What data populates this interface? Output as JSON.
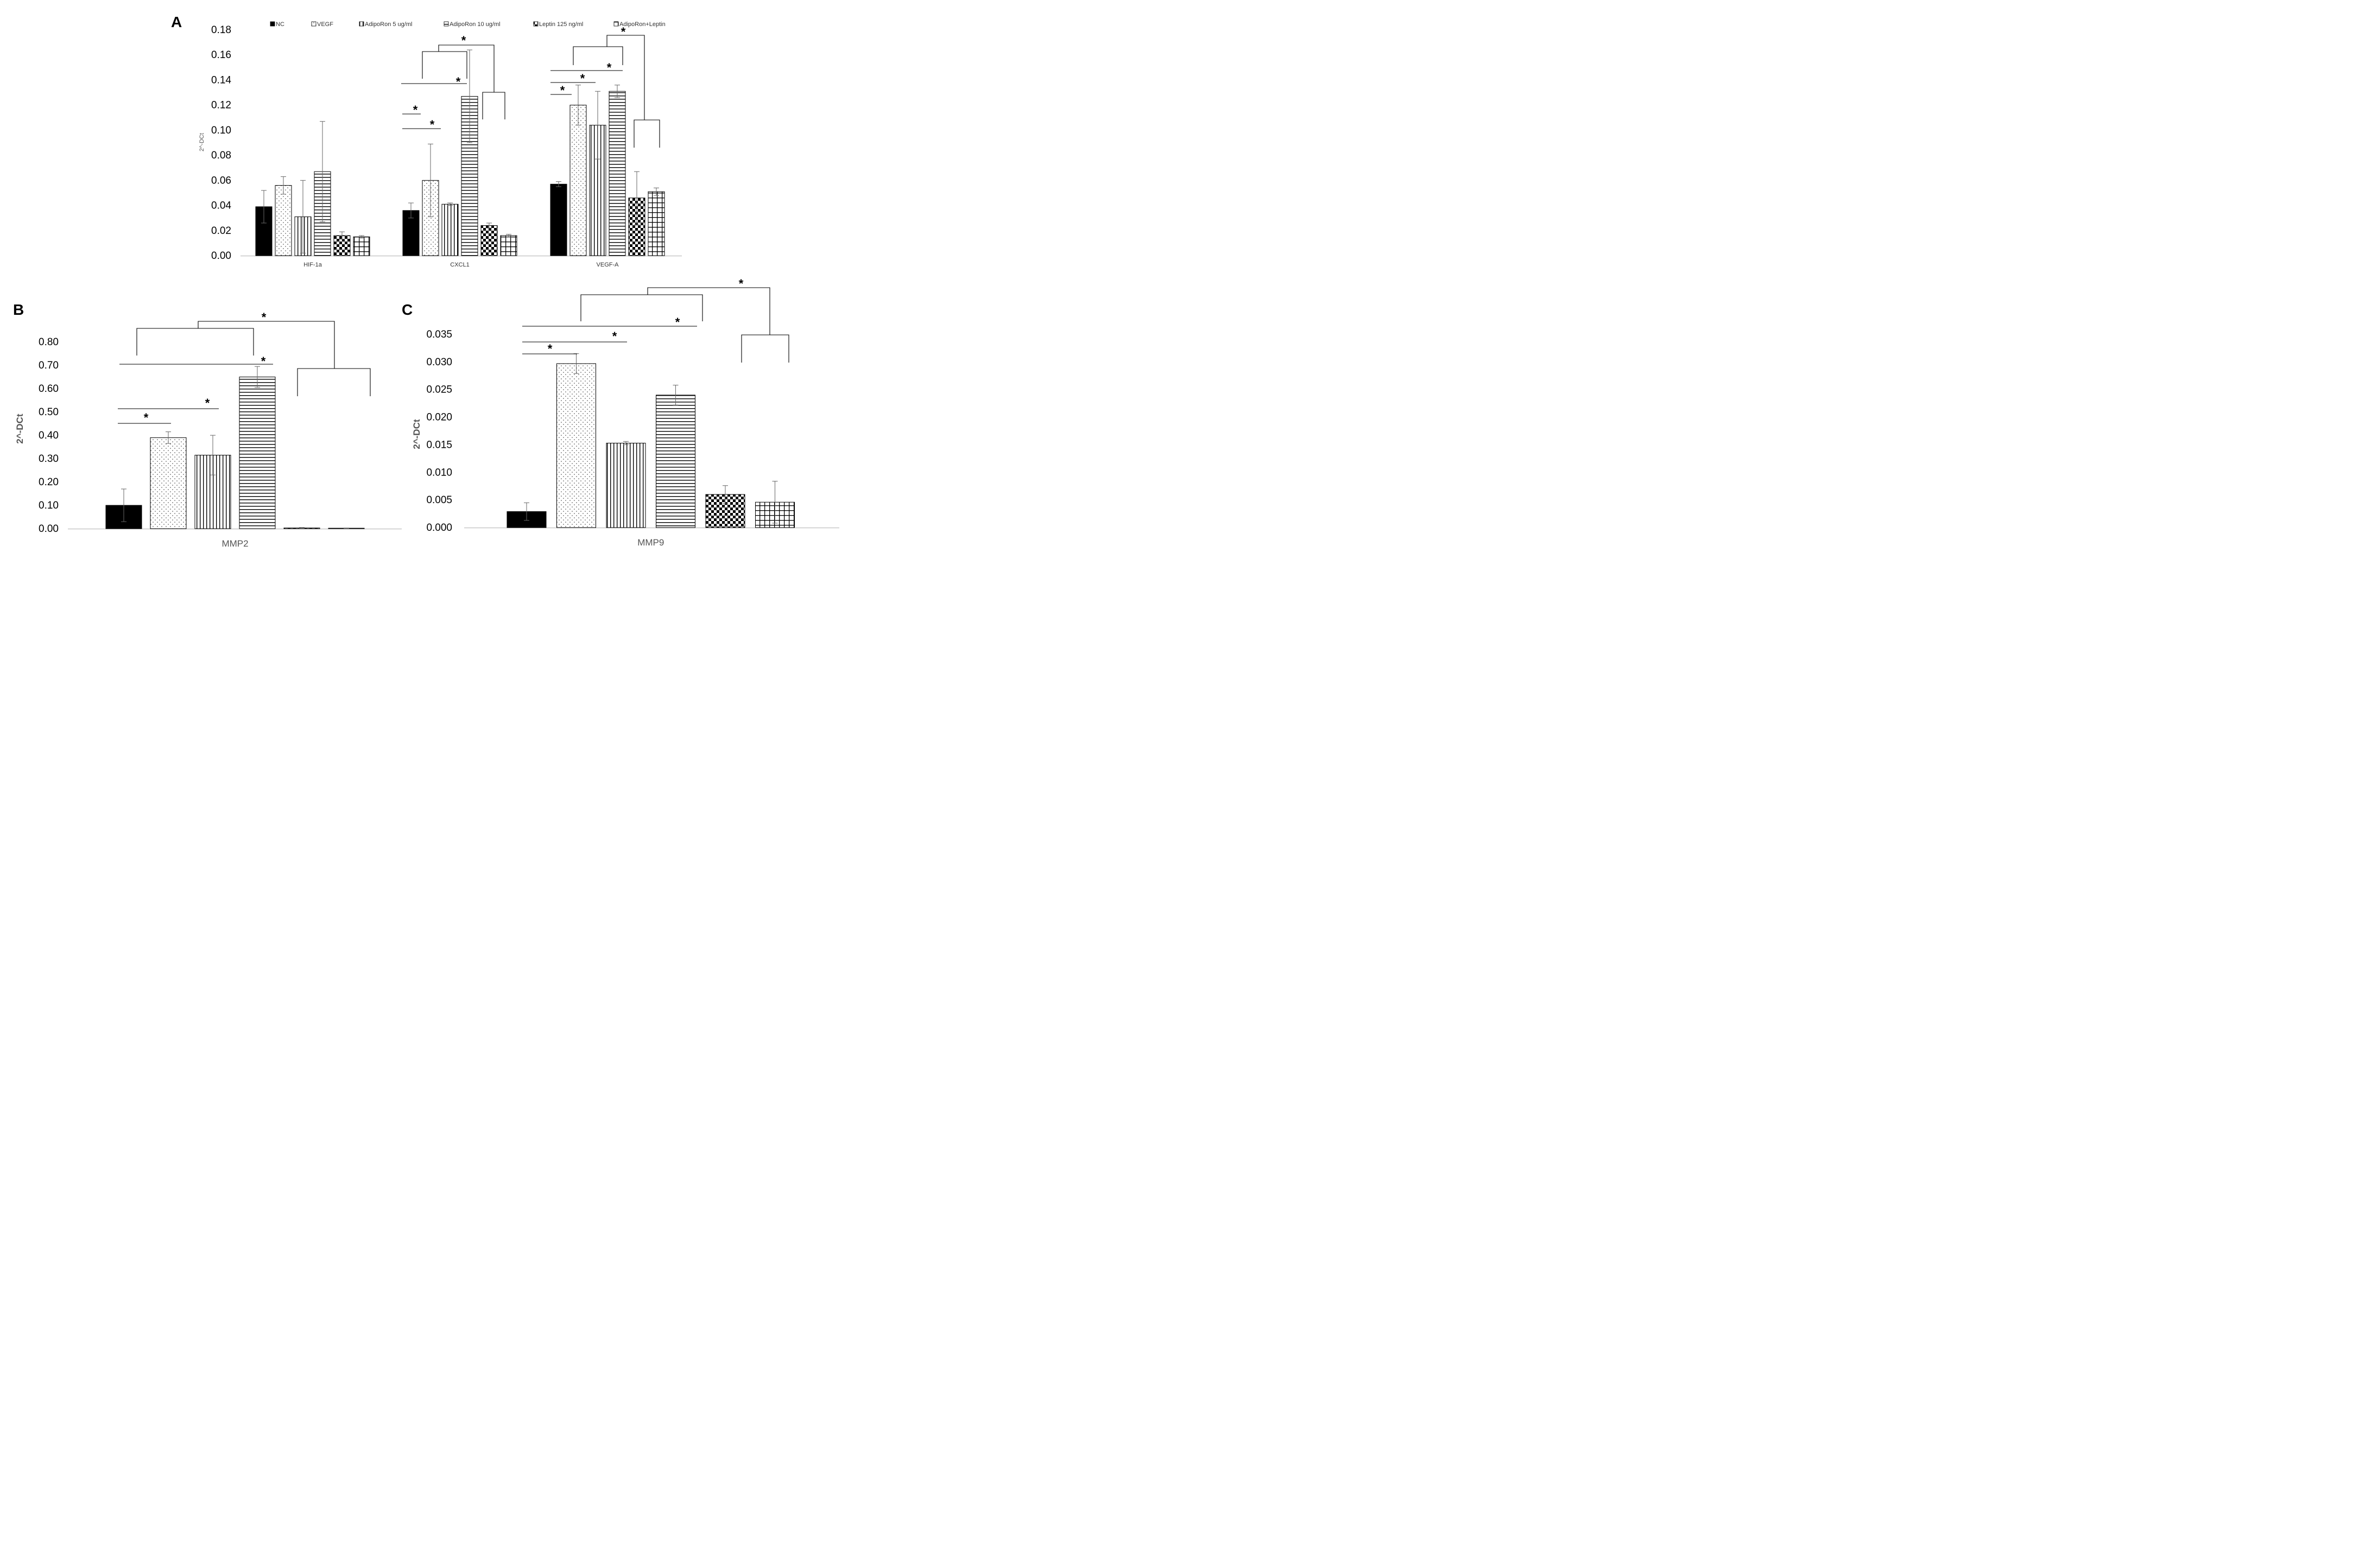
{
  "colors": {
    "axis": "#bfbfbf",
    "bar_stroke": "#000000",
    "text": "#000000",
    "label_grey": "#555555"
  },
  "legend": [
    "NC",
    "VEGF",
    "AdipoRon 5 ug/ml",
    "AdipoRon 10 ug/ml",
    "Leptin 125 ng/ml",
    "AdipoRon+Leptin"
  ],
  "significance_marker": "*",
  "chart_data": [
    {
      "panel": "A",
      "type": "bar",
      "ylabel": "2^-DCt",
      "ylim": [
        0,
        0.18
      ],
      "yticks": [
        "0.00",
        "0.02",
        "0.04",
        "0.06",
        "0.08",
        "0.10",
        "0.12",
        "0.14",
        "0.16",
        "0.18"
      ],
      "categories": [
        "HIF-1a",
        "CXCL1",
        "VEGF-A"
      ],
      "series": [
        {
          "name": "NC",
          "pattern": "solid",
          "values": [
            0.039,
            0.036,
            0.057
          ],
          "errors": [
            0.013,
            0.006,
            0.002
          ]
        },
        {
          "name": "VEGF",
          "pattern": "dots",
          "values": [
            0.056,
            0.06,
            0.12
          ],
          "errors": [
            0.007,
            0.029,
            0.016
          ]
        },
        {
          "name": "AdipoRon 5 ug/ml",
          "pattern": "vlines",
          "values": [
            0.031,
            0.041,
            0.104
          ],
          "errors": [
            0.029,
            0.001,
            0.027
          ]
        },
        {
          "name": "AdipoRon 10 ug/ml",
          "pattern": "hlines",
          "values": [
            0.067,
            0.127,
            0.131
          ],
          "errors": [
            0.04,
            0.037,
            0.005
          ]
        },
        {
          "name": "Leptin 125 ng/ml",
          "pattern": "checker",
          "values": [
            0.016,
            0.024,
            0.046
          ],
          "errors": [
            0.003,
            0.002,
            0.021
          ]
        },
        {
          "name": "AdipoRon+Leptin",
          "pattern": "grid",
          "values": [
            0.015,
            0.016,
            0.051
          ],
          "errors": [
            0.001,
            0.001,
            0.003
          ]
        }
      ]
    },
    {
      "panel": "B",
      "type": "bar",
      "ylabel": "2^-DCt",
      "ylim": [
        0,
        0.8
      ],
      "yticks": [
        "0.00",
        "0.10",
        "0.20",
        "0.30",
        "0.40",
        "0.50",
        "0.60",
        "0.70",
        "0.80"
      ],
      "categories": [
        "MMP2"
      ],
      "series": [
        {
          "name": "NC",
          "pattern": "solid",
          "values": [
            0.1
          ],
          "errors": [
            0.07
          ]
        },
        {
          "name": "VEGF",
          "pattern": "dots",
          "values": [
            0.39
          ],
          "errors": [
            0.025
          ]
        },
        {
          "name": "AdipoRon 5 ug/ml",
          "pattern": "vlines",
          "values": [
            0.315
          ],
          "errors": [
            0.085
          ]
        },
        {
          "name": "AdipoRon 10 ug/ml",
          "pattern": "hlines",
          "values": [
            0.65
          ],
          "errors": [
            0.045
          ]
        },
        {
          "name": "Leptin 125 ng/ml",
          "pattern": "checker",
          "values": [
            0.003
          ],
          "errors": [
            0.002
          ]
        },
        {
          "name": "AdipoRon+Leptin",
          "pattern": "grid",
          "values": [
            0.002
          ],
          "errors": [
            0.001
          ]
        }
      ]
    },
    {
      "panel": "C",
      "type": "bar",
      "ylabel": "2^-DCt",
      "ylim": [
        0,
        0.035
      ],
      "yticks": [
        "0.000",
        "0.005",
        "0.010",
        "0.015",
        "0.020",
        "0.025",
        "0.030",
        "0.035"
      ],
      "categories": [
        "MMP9"
      ],
      "series": [
        {
          "name": "NC",
          "pattern": "solid",
          "values": [
            0.0029
          ],
          "errors": [
            0.0016
          ]
        },
        {
          "name": "VEGF",
          "pattern": "dots",
          "values": [
            0.0297
          ],
          "errors": [
            0.0018
          ]
        },
        {
          "name": "AdipoRon 5 ug/ml",
          "pattern": "vlines",
          "values": [
            0.0153
          ],
          "errors": [
            0.0003
          ]
        },
        {
          "name": "AdipoRon 10 ug/ml",
          "pattern": "hlines",
          "values": [
            0.024
          ],
          "errors": [
            0.0018
          ]
        },
        {
          "name": "Leptin 125 ng/ml",
          "pattern": "checker",
          "values": [
            0.006
          ],
          "errors": [
            0.0016
          ]
        },
        {
          "name": "AdipoRon+Leptin",
          "pattern": "grid",
          "values": [
            0.0046
          ],
          "errors": [
            0.0038
          ]
        }
      ]
    }
  ]
}
